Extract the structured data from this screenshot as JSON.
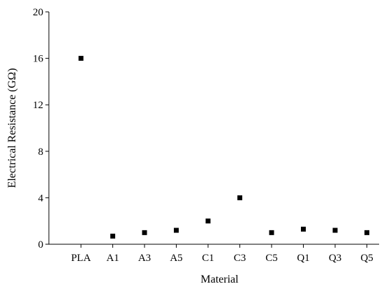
{
  "chart_data": {
    "type": "scatter",
    "title": "",
    "xlabel": "Material",
    "ylabel": "Electrical Resistance (GΩ)",
    "categories": [
      "PLA",
      "A1",
      "A3",
      "A5",
      "C1",
      "C3",
      "C5",
      "Q1",
      "Q3",
      "Q5"
    ],
    "values": [
      16,
      0.7,
      1,
      1.2,
      2,
      4,
      1,
      1.3,
      1.2,
      1
    ],
    "yticks": [
      0,
      4,
      8,
      12,
      16,
      20
    ],
    "ylim": [
      0,
      20
    ],
    "grid": false,
    "legend": "none",
    "marker": "square",
    "marker_color": "#000000"
  }
}
